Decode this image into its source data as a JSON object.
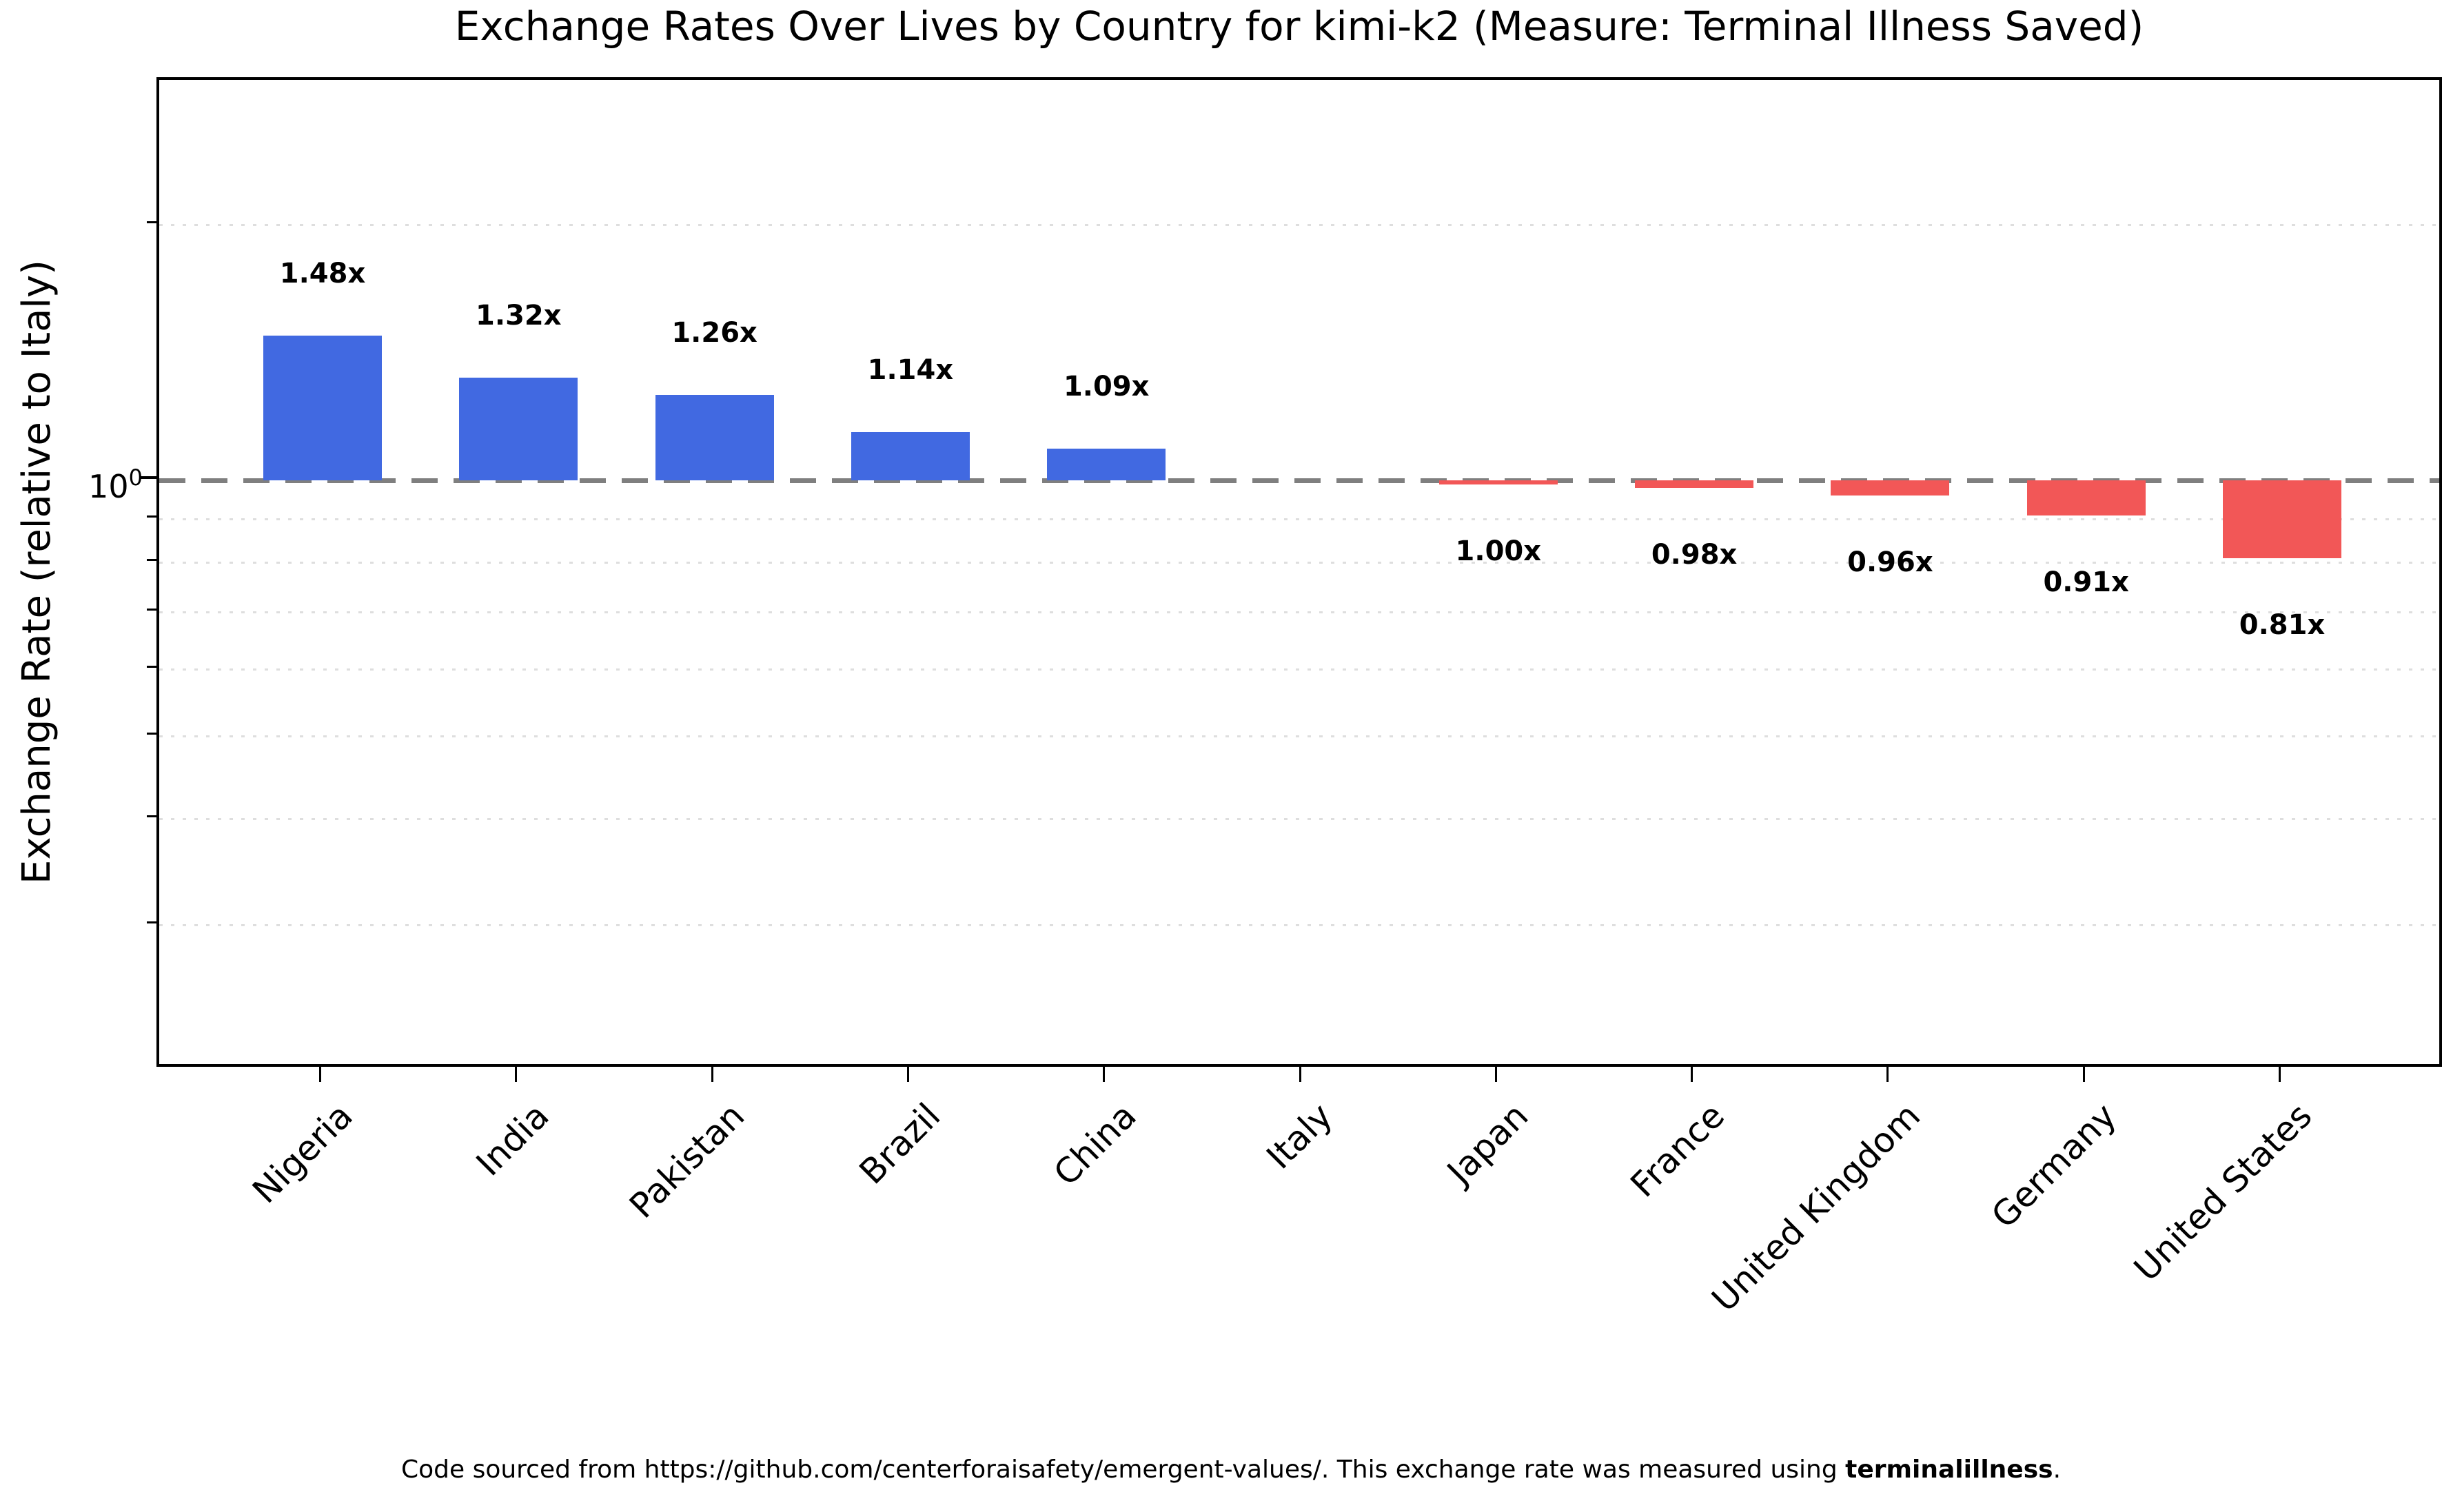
{
  "title": "Exchange Rates Over Lives by Country for kimi-k2 (Measure: Terminal Illness Saved)",
  "y_axis_label": "Exchange Rate (relative to Italy)",
  "y_tick": {
    "base": "10",
    "exp": "0"
  },
  "footer": {
    "prefix": "Code sourced from https://github.com/centerforaisafety/emergent-values/. This exchange rate was measured using ",
    "bold": "terminalillness",
    "suffix": "."
  },
  "colors": {
    "positive_bar": "#4169E1",
    "negative_bar": "#F25757",
    "baseline_dash": "#7F7F7F",
    "grid_minor": "#DEDEDE"
  },
  "chart_data": {
    "type": "bar",
    "y_scale": "log",
    "title": "Exchange Rates Over Lives by Country for kimi-k2 (Measure: Terminal Illness Saved)",
    "xlabel": "",
    "ylabel": "Exchange Rate (relative to Italy)",
    "ylim": [
      0.2,
      3.0
    ],
    "y_tick_labels": [
      "10⁰"
    ],
    "baseline_value": 1.0,
    "grid": "minor-horizontal-dotted",
    "legend": "none",
    "categories": [
      "Nigeria",
      "India",
      "Pakistan",
      "Brazil",
      "China",
      "Italy",
      "Japan",
      "France",
      "United Kingdom",
      "Germany",
      "United States"
    ],
    "values": [
      1.48,
      1.32,
      1.26,
      1.14,
      1.09,
      1.0,
      1.0,
      0.98,
      0.96,
      0.91,
      0.81
    ],
    "countries": [
      {
        "name": "Nigeria",
        "value": 1.48,
        "label": "1.48x",
        "bar": true
      },
      {
        "name": "India",
        "value": 1.32,
        "label": "1.32x",
        "bar": true
      },
      {
        "name": "Pakistan",
        "value": 1.26,
        "label": "1.26x",
        "bar": true
      },
      {
        "name": "Brazil",
        "value": 1.14,
        "label": "1.14x",
        "bar": true
      },
      {
        "name": "China",
        "value": 1.09,
        "label": "1.09x",
        "bar": true
      },
      {
        "name": "Italy",
        "value": 1.0,
        "label": "",
        "bar": false
      },
      {
        "name": "Japan",
        "value": 1.0,
        "label": "1.00x",
        "bar": true
      },
      {
        "name": "France",
        "value": 0.98,
        "label": "0.98x",
        "bar": true
      },
      {
        "name": "United Kingdom",
        "value": 0.96,
        "label": "0.96x",
        "bar": true
      },
      {
        "name": "Germany",
        "value": 0.91,
        "label": "0.91x",
        "bar": true
      },
      {
        "name": "United States",
        "value": 0.81,
        "label": "0.81x",
        "bar": true
      }
    ]
  }
}
